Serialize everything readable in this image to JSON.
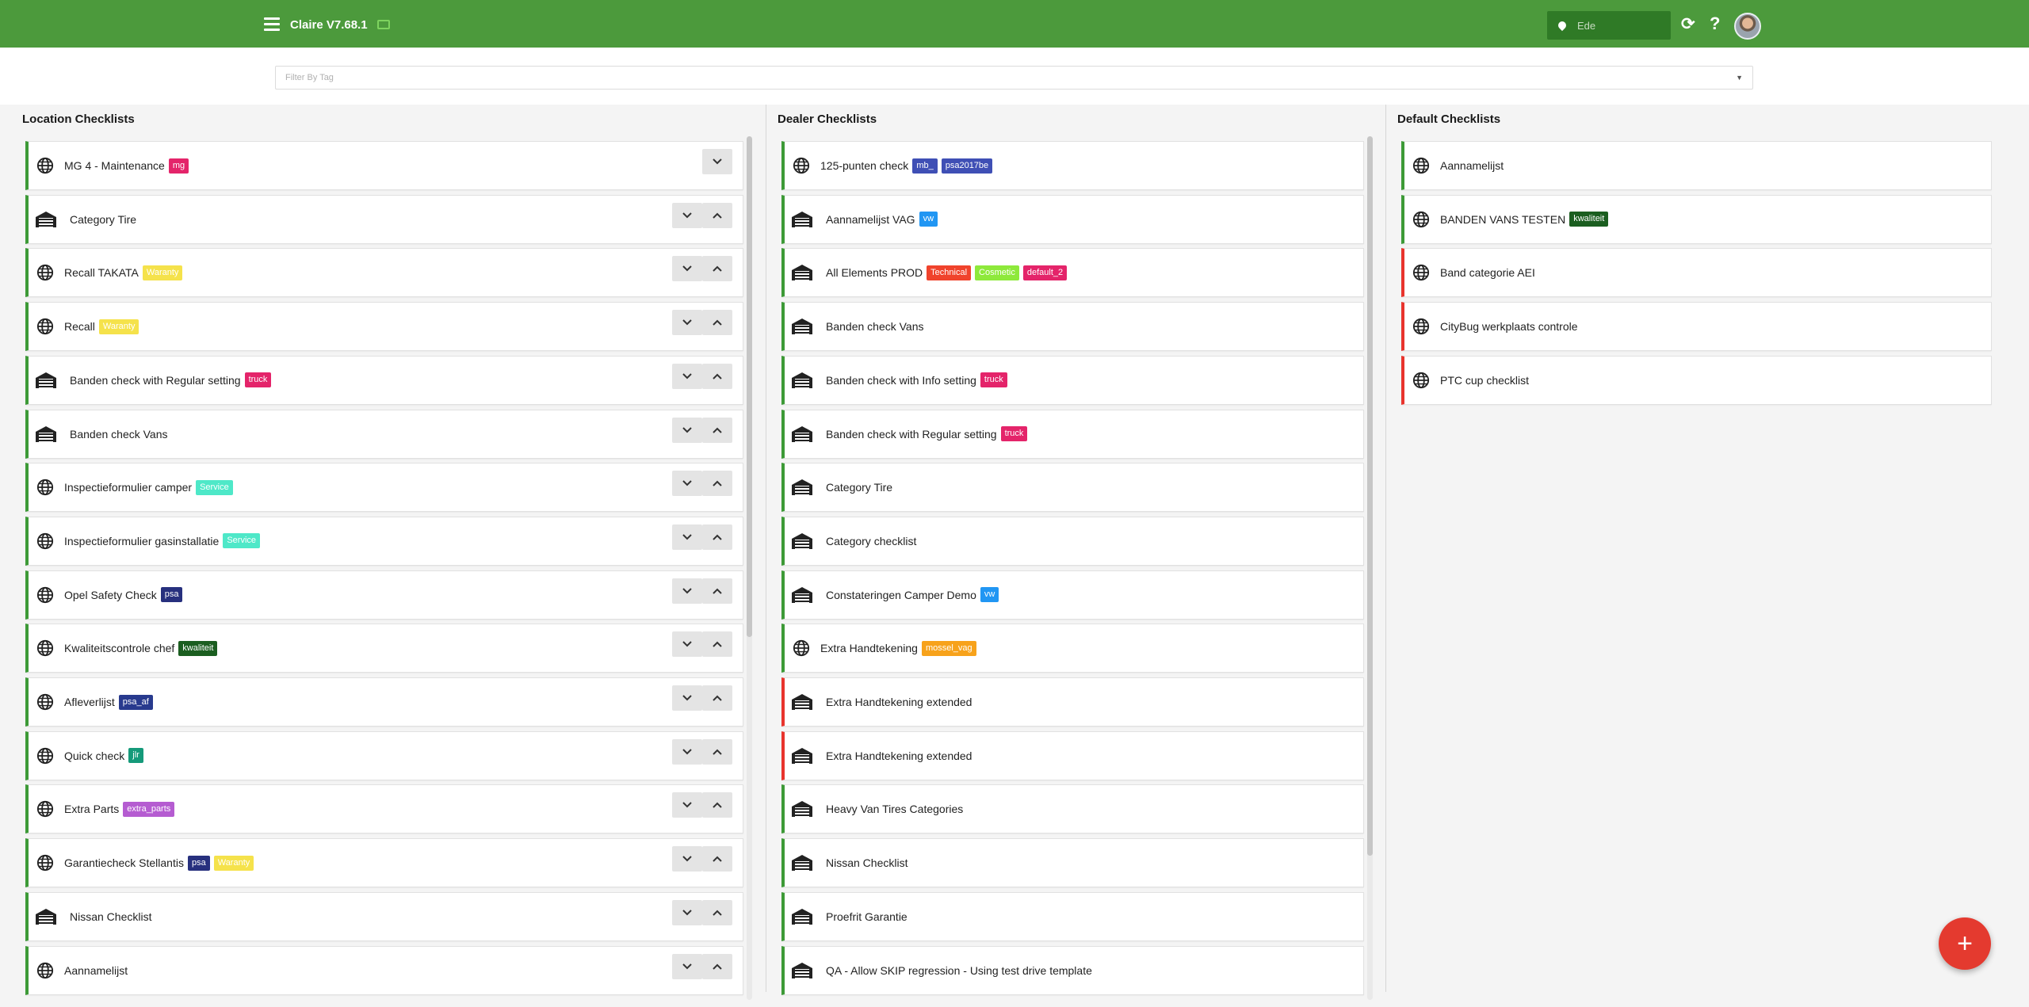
{
  "app": {
    "title": "Claire V7.68.1"
  },
  "header": {
    "location": "Ede"
  },
  "filter": {
    "placeholder": "Filter By Tag"
  },
  "colors": {
    "primary": "#4c9a3c",
    "fab": "#e43a2f",
    "green_border": "#3d9a37",
    "red_border": "#e8342d"
  },
  "location_checklists": {
    "title": "Location Checklists",
    "items": [
      {
        "name": "MG 4 - Maintenance",
        "icon": "globe-icon",
        "tags": [
          {
            "label": "mg",
            "color": "#e4246a"
          }
        ],
        "controls": [
          "chevron-down"
        ]
      },
      {
        "name": "Category Tire",
        "icon": "garage-icon",
        "tags": [],
        "controls": [
          "chevron-down",
          "chevron-up"
        ]
      },
      {
        "name": "Recall TAKATA",
        "icon": "globe-icon",
        "tags": [
          {
            "label": "Waranty",
            "color": "#f5e24b"
          }
        ],
        "controls": [
          "chevron-down",
          "chevron-up"
        ]
      },
      {
        "name": "Recall",
        "icon": "globe-icon",
        "tags": [
          {
            "label": "Waranty",
            "color": "#f5e24b"
          }
        ],
        "controls": [
          "chevron-down",
          "chevron-up"
        ]
      },
      {
        "name": "Banden check with Regular setting",
        "icon": "garage-icon",
        "tags": [
          {
            "label": "truck",
            "color": "#e4246a"
          }
        ],
        "controls": [
          "chevron-down",
          "chevron-up"
        ]
      },
      {
        "name": "Banden check Vans",
        "icon": "garage-icon",
        "tags": [],
        "controls": [
          "chevron-down",
          "chevron-up"
        ]
      },
      {
        "name": "Inspectieformulier camper",
        "icon": "globe-icon",
        "tags": [
          {
            "label": "Service",
            "color": "#4ee8c8"
          }
        ],
        "controls": [
          "chevron-down",
          "chevron-up"
        ]
      },
      {
        "name": "Inspectieformulier gasinstallatie",
        "icon": "globe-icon",
        "tags": [
          {
            "label": "Service",
            "color": "#4ee8c8"
          }
        ],
        "controls": [
          "chevron-down",
          "chevron-up"
        ]
      },
      {
        "name": "Opel Safety Check",
        "icon": "globe-icon",
        "tags": [
          {
            "label": "psa",
            "color": "#27307e"
          }
        ],
        "controls": [
          "chevron-down",
          "chevron-up"
        ]
      },
      {
        "name": "Kwaliteitscontrole chef",
        "icon": "globe-icon",
        "tags": [
          {
            "label": "kwaliteit",
            "color": "#1b5e20"
          }
        ],
        "controls": [
          "chevron-down",
          "chevron-up"
        ]
      },
      {
        "name": "Afleverlijst",
        "icon": "globe-icon",
        "tags": [
          {
            "label": "psa_af",
            "color": "#283a8e"
          }
        ],
        "controls": [
          "chevron-down",
          "chevron-up"
        ]
      },
      {
        "name": "Quick check",
        "icon": "globe-icon",
        "tags": [
          {
            "label": "jlr",
            "color": "#159a7a"
          }
        ],
        "controls": [
          "chevron-down",
          "chevron-up"
        ]
      },
      {
        "name": "Extra Parts",
        "icon": "globe-icon",
        "tags": [
          {
            "label": "extra_parts",
            "color": "#b55cd1"
          }
        ],
        "controls": [
          "chevron-down",
          "chevron-up"
        ]
      },
      {
        "name": "Garantiecheck Stellantis",
        "icon": "globe-icon",
        "tags": [
          {
            "label": "psa",
            "color": "#27307e"
          },
          {
            "label": "Waranty",
            "color": "#f5e24b"
          }
        ],
        "controls": [
          "chevron-down",
          "chevron-up"
        ]
      },
      {
        "name": "Nissan Checklist",
        "icon": "garage-icon",
        "tags": [],
        "controls": [
          "chevron-down",
          "chevron-up"
        ]
      },
      {
        "name": "Aannamelijst",
        "icon": "globe-icon",
        "tags": [],
        "controls": [
          "chevron-down",
          "chevron-up"
        ]
      }
    ]
  },
  "dealer_checklists": {
    "title": "Dealer Checklists",
    "items": [
      {
        "name": "125-punten check",
        "icon": "globe-icon",
        "border": "green",
        "tags": [
          {
            "label": "mb_",
            "color": "#3f4fb5"
          },
          {
            "label": "psa2017be",
            "color": "#3f4fb5"
          }
        ]
      },
      {
        "name": "Aannamelijst VAG",
        "icon": "garage-icon",
        "border": "green",
        "tags": [
          {
            "label": "vw",
            "color": "#2196f3"
          }
        ]
      },
      {
        "name": "All Elements PROD",
        "icon": "garage-icon",
        "border": "green",
        "tags": [
          {
            "label": "Technical",
            "color": "#f0432c"
          },
          {
            "label": "Cosmetic",
            "color": "#8ee93b"
          },
          {
            "label": "default_2",
            "color": "#e4246a"
          }
        ]
      },
      {
        "name": "Banden check Vans",
        "icon": "garage-icon",
        "border": "green",
        "tags": []
      },
      {
        "name": "Banden check with Info setting",
        "icon": "garage-icon",
        "border": "green",
        "tags": [
          {
            "label": "truck",
            "color": "#e4246a"
          }
        ]
      },
      {
        "name": "Banden check with Regular setting",
        "icon": "garage-icon",
        "border": "green",
        "tags": [
          {
            "label": "truck",
            "color": "#e4246a"
          }
        ]
      },
      {
        "name": "Category Tire",
        "icon": "garage-icon",
        "border": "green",
        "tags": []
      },
      {
        "name": "Category checklist",
        "icon": "garage-icon",
        "border": "green",
        "tags": []
      },
      {
        "name": "Constateringen Camper Demo",
        "icon": "garage-icon",
        "border": "green",
        "tags": [
          {
            "label": "vw",
            "color": "#2196f3"
          }
        ]
      },
      {
        "name": "Extra Handtekening",
        "icon": "globe-icon",
        "border": "green",
        "tags": [
          {
            "label": "mossel_vag",
            "color": "#f7a21b"
          }
        ]
      },
      {
        "name": "Extra Handtekening extended",
        "icon": "garage-icon",
        "border": "red",
        "tags": []
      },
      {
        "name": "Extra Handtekening extended",
        "icon": "garage-icon",
        "border": "red",
        "tags": []
      },
      {
        "name": "Heavy Van Tires Categories",
        "icon": "garage-icon",
        "border": "green",
        "tags": []
      },
      {
        "name": "Nissan Checklist",
        "icon": "garage-icon",
        "border": "green",
        "tags": []
      },
      {
        "name": "Proefrit Garantie",
        "icon": "garage-icon",
        "border": "green",
        "tags": []
      },
      {
        "name": "QA - Allow SKIP regression - Using test drive template",
        "icon": "garage-icon",
        "border": "green",
        "tags": []
      }
    ]
  },
  "default_checklists": {
    "title": "Default Checklists",
    "items": [
      {
        "name": "Aannamelijst",
        "icon": "globe-icon",
        "border": "green",
        "tags": []
      },
      {
        "name": "BANDEN VANS TESTEN",
        "icon": "globe-icon",
        "border": "green",
        "tags": [
          {
            "label": "kwaliteit",
            "color": "#1b5e20"
          }
        ]
      },
      {
        "name": "Band categorie AEI",
        "icon": "globe-icon",
        "border": "red",
        "tags": []
      },
      {
        "name": "CityBug werkplaats controle",
        "icon": "globe-icon",
        "border": "red",
        "tags": []
      },
      {
        "name": "PTC cup checklist",
        "icon": "globe-icon",
        "border": "red",
        "tags": []
      }
    ]
  },
  "fab": {
    "label": "+"
  }
}
